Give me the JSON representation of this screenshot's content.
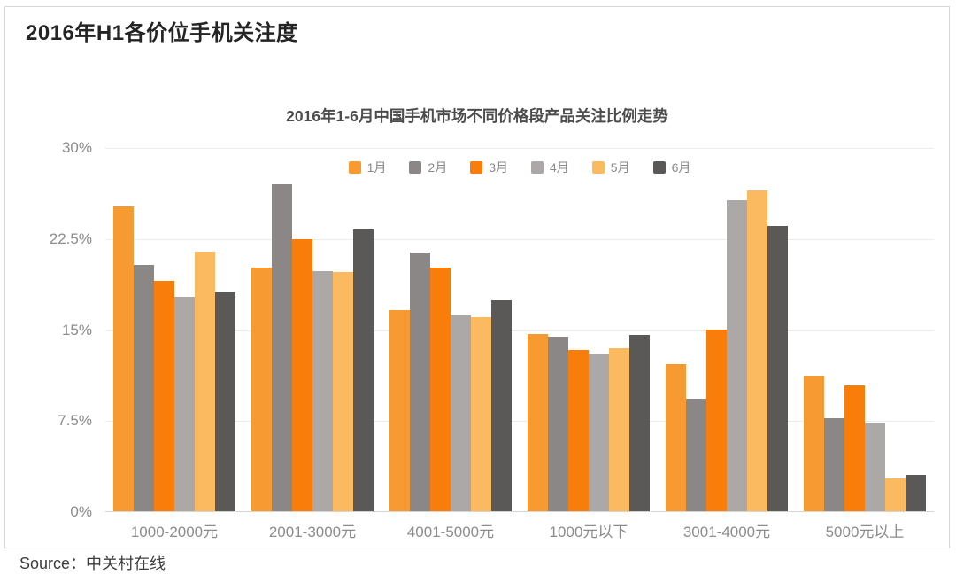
{
  "page": {
    "title": "2016年H1各价位手机关注度",
    "source": "Source：中关村在线"
  },
  "chart_data": {
    "type": "bar",
    "title": "2016年1-6月中国手机市场不同价格段产品关注比例走势",
    "categories": [
      "1000-2000元",
      "2001-3000元",
      "4001-5000元",
      "1000元以下",
      "3001-4000元",
      "5000元以上"
    ],
    "series": [
      {
        "name": "1月",
        "color": "#F79A32",
        "values": [
          25.1,
          20.1,
          16.6,
          14.6,
          12.1,
          11.2
        ]
      },
      {
        "name": "2月",
        "color": "#8B8786",
        "values": [
          20.3,
          26.9,
          21.3,
          14.4,
          9.3,
          7.7
        ]
      },
      {
        "name": "3月",
        "color": "#F87D0B",
        "values": [
          19.0,
          22.4,
          20.1,
          13.3,
          15.0,
          10.4
        ]
      },
      {
        "name": "4月",
        "color": "#ACA8A7",
        "values": [
          17.7,
          19.8,
          16.1,
          13.0,
          25.6,
          7.2
        ]
      },
      {
        "name": "5月",
        "color": "#FBBA60",
        "values": [
          21.4,
          19.7,
          16.0,
          13.4,
          26.4,
          2.7
        ]
      },
      {
        "name": "6月",
        "color": "#5B5858",
        "values": [
          18.0,
          23.2,
          17.4,
          14.5,
          23.5,
          3.0
        ]
      }
    ],
    "y_ticks": [
      {
        "label": "30%",
        "value": 30
      },
      {
        "label": "22.5%",
        "value": 22.5
      },
      {
        "label": "15%",
        "value": 15
      },
      {
        "label": "7.5%",
        "value": 7.5
      },
      {
        "label": "0%",
        "value": 0
      }
    ],
    "ylim": [
      0,
      30
    ],
    "grid": true,
    "legend_position": "top-center"
  }
}
